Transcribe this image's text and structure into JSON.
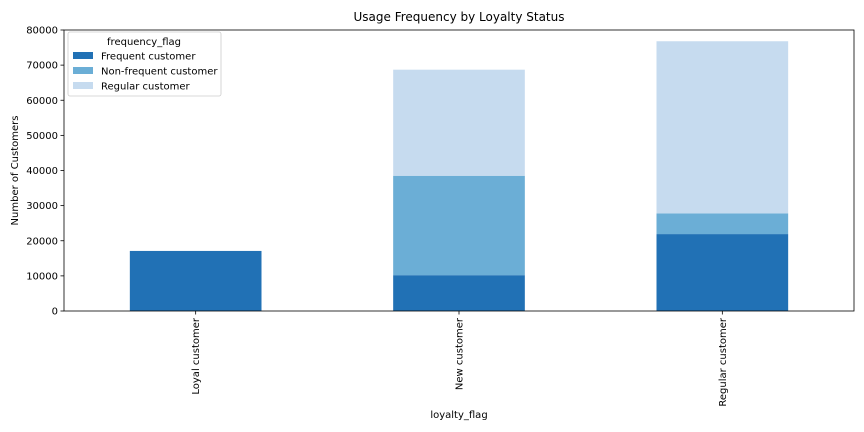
{
  "chart_data": {
    "type": "bar",
    "stacked": true,
    "title": "Usage Frequency by Loyalty Status",
    "xlabel": "loyalty_flag",
    "ylabel": "Number of Customers",
    "categories": [
      "Loyal customer",
      "New customer",
      "Regular customer"
    ],
    "series": [
      {
        "name": "Frequent customer",
        "color": "#2171b5",
        "values": [
          17100,
          10200,
          21900
        ]
      },
      {
        "name": "Non-frequent customer",
        "color": "#6baed6",
        "values": [
          0,
          28300,
          5900
        ]
      },
      {
        "name": "Regular customer",
        "color": "#c6dbef",
        "values": [
          0,
          30200,
          49000
        ]
      }
    ],
    "ylim": [
      0,
      80000
    ],
    "yticks": [
      0,
      10000,
      20000,
      30000,
      40000,
      50000,
      60000,
      70000,
      80000
    ],
    "grid": false,
    "legend": {
      "title": "frequency_flag",
      "placement": "top-left"
    }
  }
}
